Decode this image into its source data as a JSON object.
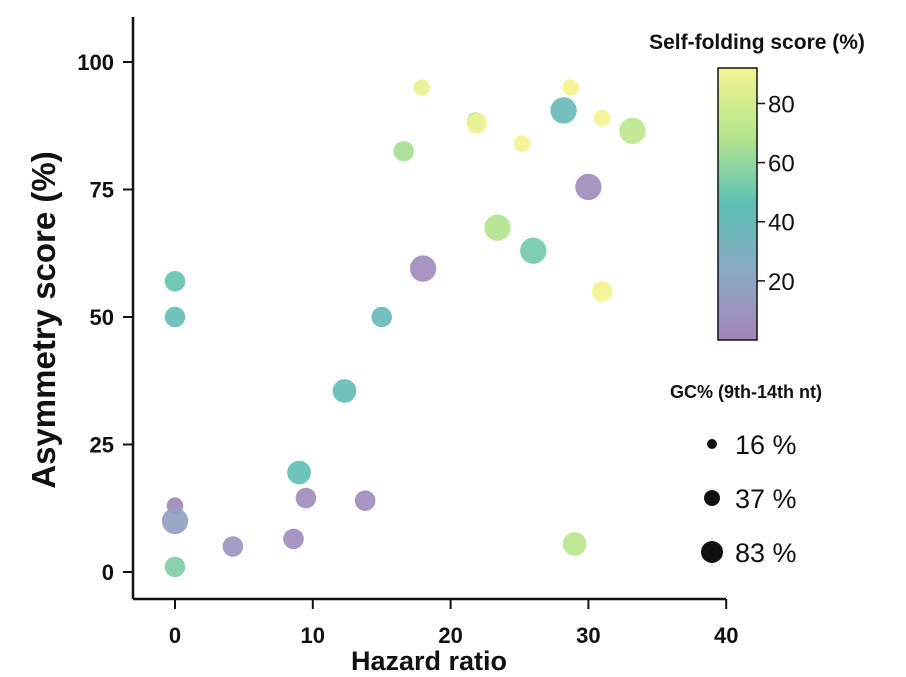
{
  "chart_data": {
    "type": "scatter",
    "title": "",
    "xlabel": "Hazard ratio",
    "ylabel": "Asymmetry score (%)",
    "xlim": [
      -3,
      40
    ],
    "ylim": [
      -5,
      107
    ],
    "xticks": [
      "0",
      "10",
      "20",
      "30",
      "40"
    ],
    "xtick_values": [
      0,
      10,
      20,
      30,
      40
    ],
    "yticks": [
      "0",
      "25",
      "50",
      "75",
      "100"
    ],
    "ytick_values": [
      0,
      25,
      50,
      75,
      100
    ],
    "grid": false,
    "color_encoding": {
      "title": "Self-folding score (%)",
      "ticks": [
        "20",
        "40",
        "60",
        "80"
      ],
      "tick_values": [
        20,
        40,
        60,
        80
      ],
      "range": [
        0,
        92
      ],
      "colormap": "viridis (light, semi-transparent)"
    },
    "size_encoding": {
      "title": "GC% (9th-14th nt)",
      "entries": [
        {
          "label": "16 %",
          "value": 16
        },
        {
          "label": "37 %",
          "value": 37
        },
        {
          "label": "83 %",
          "value": 83
        }
      ]
    },
    "points": [
      {
        "x": 0,
        "y": 57,
        "color": 48,
        "size": 37
      },
      {
        "x": 0,
        "y": 50,
        "color": 42,
        "size": 37
      },
      {
        "x": 0,
        "y": 13,
        "color": 3,
        "size": 16
      },
      {
        "x": 0,
        "y": 10,
        "color": 18,
        "size": 83
      },
      {
        "x": 0,
        "y": 1,
        "color": 55,
        "size": 37
      },
      {
        "x": 4.2,
        "y": 5,
        "color": 10,
        "size": 37
      },
      {
        "x": 8.6,
        "y": 6.5,
        "color": 5,
        "size": 37
      },
      {
        "x": 9.0,
        "y": 19.5,
        "color": 45,
        "size": 60
      },
      {
        "x": 9.5,
        "y": 14.5,
        "color": 5,
        "size": 37
      },
      {
        "x": 12.3,
        "y": 35.5,
        "color": 42,
        "size": 60
      },
      {
        "x": 13.8,
        "y": 14,
        "color": 5,
        "size": 37
      },
      {
        "x": 15.0,
        "y": 50,
        "color": 40,
        "size": 37
      },
      {
        "x": 16.6,
        "y": 82.5,
        "color": 65,
        "size": 37
      },
      {
        "x": 17.9,
        "y": 95,
        "color": 88,
        "size": 16
      },
      {
        "x": 18.0,
        "y": 59.5,
        "color": 5,
        "size": 83
      },
      {
        "x": 21.8,
        "y": 88.5,
        "color": 60,
        "size": 16
      },
      {
        "x": 21.9,
        "y": 88,
        "color": 90,
        "size": 37
      },
      {
        "x": 23.4,
        "y": 67.5,
        "color": 68,
        "size": 83
      },
      {
        "x": 25.2,
        "y": 84,
        "color": 92,
        "size": 16
      },
      {
        "x": 26.0,
        "y": 63,
        "color": 52,
        "size": 83
      },
      {
        "x": 28.2,
        "y": 90.5,
        "color": 40,
        "size": 83
      },
      {
        "x": 28.7,
        "y": 95,
        "color": 92,
        "size": 16
      },
      {
        "x": 29.0,
        "y": 5.5,
        "color": 70,
        "size": 60
      },
      {
        "x": 30.0,
        "y": 75.5,
        "color": 5,
        "size": 83
      },
      {
        "x": 31.0,
        "y": 89,
        "color": 92,
        "size": 16
      },
      {
        "x": 31.0,
        "y": 55,
        "color": 92,
        "size": 37
      },
      {
        "x": 33.2,
        "y": 86.5,
        "color": 72,
        "size": 83
      }
    ]
  }
}
